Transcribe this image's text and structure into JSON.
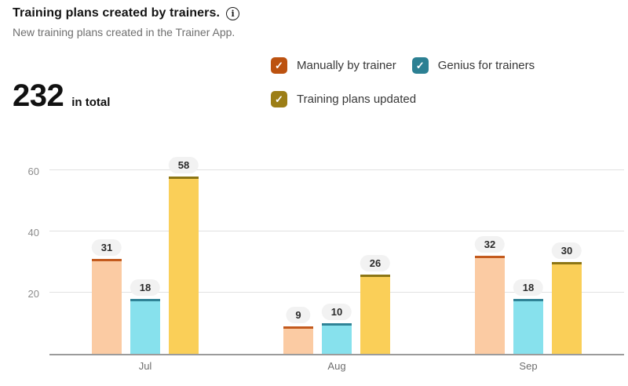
{
  "header": {
    "title": "Training plans created by trainers.",
    "subtitle": "New training plans created in the Trainer App."
  },
  "total": {
    "value": "232",
    "label": "in total"
  },
  "icons": {
    "info": "i",
    "check": "✓"
  },
  "legend": {
    "items": [
      {
        "label": "Manually by trainer",
        "color": "#bc5210"
      },
      {
        "label": "Genius for trainers",
        "color": "#2c8093"
      },
      {
        "label": "Training plans updated",
        "color": "#9c7e16"
      }
    ]
  },
  "chart_data": {
    "type": "bar",
    "title": "Training plans created by trainers.",
    "subtitle": "New training plans created in the Trainer App.",
    "categories": [
      "Jul",
      "Aug",
      "Sep"
    ],
    "series": [
      {
        "name": "Manually by trainer",
        "values": [
          31,
          9,
          32
        ],
        "bar_color": "#fbcba3",
        "cap_color": "#c35a1d"
      },
      {
        "name": "Genius for trainers",
        "values": [
          18,
          10,
          18
        ],
        "bar_color": "#87e1ed",
        "cap_color": "#2f8396"
      },
      {
        "name": "Training plans updated",
        "values": [
          58,
          26,
          30
        ],
        "bar_color": "#facf58",
        "cap_color": "#8c7514"
      }
    ],
    "yticks": [
      20,
      40,
      60
    ],
    "ylim": [
      0,
      65
    ],
    "grid": true,
    "legend_position": "top-right",
    "value_labels": true,
    "total": 232
  }
}
